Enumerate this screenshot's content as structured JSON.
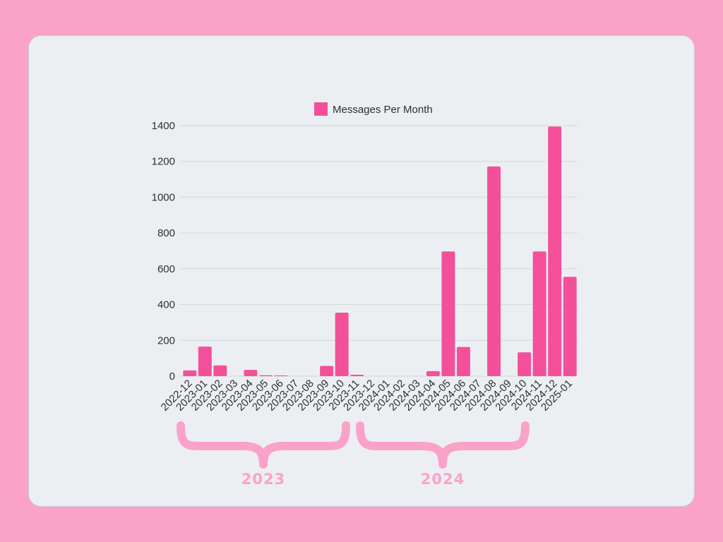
{
  "chart_data": {
    "type": "bar",
    "categories": [
      "2022-12",
      "2023-01",
      "2023-02",
      "2023-03",
      "2023-04",
      "2023-05",
      "2023-06",
      "2023-07",
      "2023-08",
      "2023-09",
      "2023-10",
      "2023-11",
      "2023-12",
      "2024-01",
      "2024-02",
      "2024-03",
      "2024-04",
      "2024-05",
      "2024-06",
      "2024-07",
      "2024-08",
      "2024-09",
      "2024-10",
      "2024-11",
      "2024-12",
      "2025-01"
    ],
    "series": [
      {
        "name": "Messages Per Month",
        "values": [
          32,
          165,
          60,
          0,
          35,
          5,
          3,
          0,
          0,
          57,
          355,
          8,
          0,
          0,
          0,
          0,
          28,
          697,
          163,
          0,
          1172,
          0,
          133,
          697,
          1395,
          555
        ]
      }
    ],
    "ylim": [
      0,
      1400
    ],
    "yticks": [
      0,
      200,
      400,
      600,
      800,
      1000,
      1200,
      1400
    ],
    "grid": true,
    "legend_position": "top-center",
    "colors": {
      "bar": "#F4509A",
      "year_brace": "#FBA2C8"
    },
    "year_groups": [
      {
        "label": "2023"
      },
      {
        "label": "2024"
      }
    ]
  }
}
